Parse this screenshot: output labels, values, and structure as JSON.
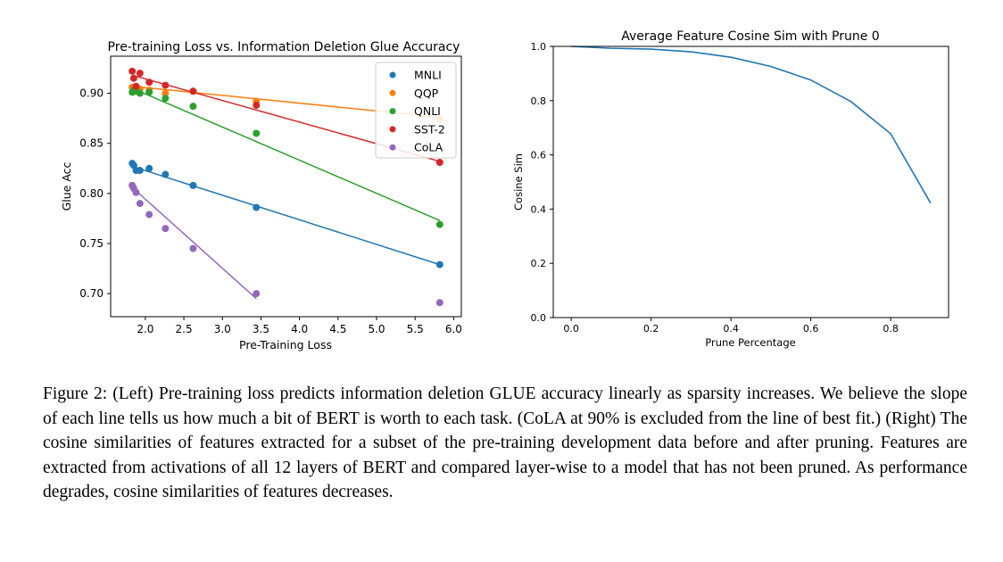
{
  "chart_data": [
    {
      "type": "scatter",
      "title": "Pre-training Loss vs. Information Deletion Glue Accuracy",
      "xlabel": "Pre-Training Loss",
      "ylabel": "Glue Acc",
      "xlim": [
        1.55,
        6.1
      ],
      "ylim": [
        0.677,
        0.937
      ],
      "xticks": [
        2.0,
        2.5,
        3.0,
        3.5,
        4.0,
        4.5,
        5.0,
        5.5,
        6.0
      ],
      "xtick_labels": [
        "2.0",
        "2.5",
        "3.0",
        "3.5",
        "4.0",
        "4.5",
        "5.0",
        "5.5",
        "6.0"
      ],
      "yticks": [
        0.7,
        0.75,
        0.8,
        0.85,
        0.9
      ],
      "ytick_labels": [
        "0.70",
        "0.75",
        "0.80",
        "0.85",
        "0.90"
      ],
      "x": [
        1.83,
        1.85,
        1.88,
        1.93,
        2.05,
        2.26,
        2.62,
        3.44,
        5.82
      ],
      "grid": false,
      "legend_position": "top-right",
      "series": [
        {
          "name": "MNLI",
          "color": "#1f77b4",
          "y": [
            0.83,
            0.828,
            0.823,
            0.823,
            0.825,
            0.819,
            0.808,
            0.786,
            0.729
          ],
          "fit": [
            0.827,
            0.729
          ]
        },
        {
          "name": "QQP",
          "color": "#ff7f0e",
          "y": [
            0.906,
            0.905,
            0.905,
            0.904,
            0.903,
            0.9,
            0.902,
            0.892,
            0.874
          ],
          "fit": [
            0.907,
            0.876
          ]
        },
        {
          "name": "QNLI",
          "color": "#2ca02c",
          "y": [
            0.901,
            0.903,
            0.902,
            0.9,
            0.901,
            0.895,
            0.887,
            0.86,
            0.769
          ],
          "fit": [
            0.905,
            0.773
          ]
        },
        {
          "name": "SST-2",
          "color": "#d62728",
          "y": [
            0.922,
            0.915,
            0.907,
            0.92,
            0.911,
            0.908,
            0.902,
            0.888,
            0.831
          ],
          "fit": [
            0.918,
            0.832
          ]
        },
        {
          "name": "CoLA",
          "color": "#9467bd",
          "y": [
            0.808,
            0.805,
            0.801,
            0.79,
            0.779,
            0.765,
            0.745,
            0.7,
            0.691
          ],
          "fit_x": [
            1.83,
            3.44
          ],
          "fit": [
            0.806,
            0.695
          ]
        }
      ]
    },
    {
      "type": "line",
      "title": "Average Feature Cosine Sim with Prune 0",
      "xlabel": "Prune Percentage",
      "ylabel": "Cosine Sim",
      "xlim": [
        -0.045,
        0.945
      ],
      "ylim": [
        0.0,
        1.0
      ],
      "xticks": [
        0.0,
        0.2,
        0.4,
        0.6,
        0.8
      ],
      "xtick_labels": [
        "0.0",
        "0.2",
        "0.4",
        "0.6",
        "0.8"
      ],
      "yticks": [
        0.0,
        0.2,
        0.4,
        0.6,
        0.8,
        1.0
      ],
      "ytick_labels": [
        "0.0",
        "0.2",
        "0.4",
        "0.6",
        "0.8",
        "1.0"
      ],
      "grid": false,
      "series": [
        {
          "color": "#1f77b4",
          "x": [
            0.0,
            0.1,
            0.2,
            0.3,
            0.4,
            0.5,
            0.6,
            0.7,
            0.8,
            0.9
          ],
          "y": [
            1.0,
            0.993,
            0.99,
            0.98,
            0.96,
            0.926,
            0.876,
            0.797,
            0.678,
            0.422
          ]
        }
      ]
    }
  ],
  "caption": "Figure 2: (Left) Pre-training loss predicts information deletion GLUE accuracy linearly as sparsity increases. We believe the slope of each line tells us how much a bit of BERT is worth to each task. (CoLA at 90% is excluded from the line of best fit.) (Right) The cosine similarities of features extracted for a subset of the pre-training development data before and after pruning. Features are extracted from activations of all 12 layers of BERT and compared layer-wise to a model that has not been pruned. As performance degrades, cosine similarities of features decreases."
}
